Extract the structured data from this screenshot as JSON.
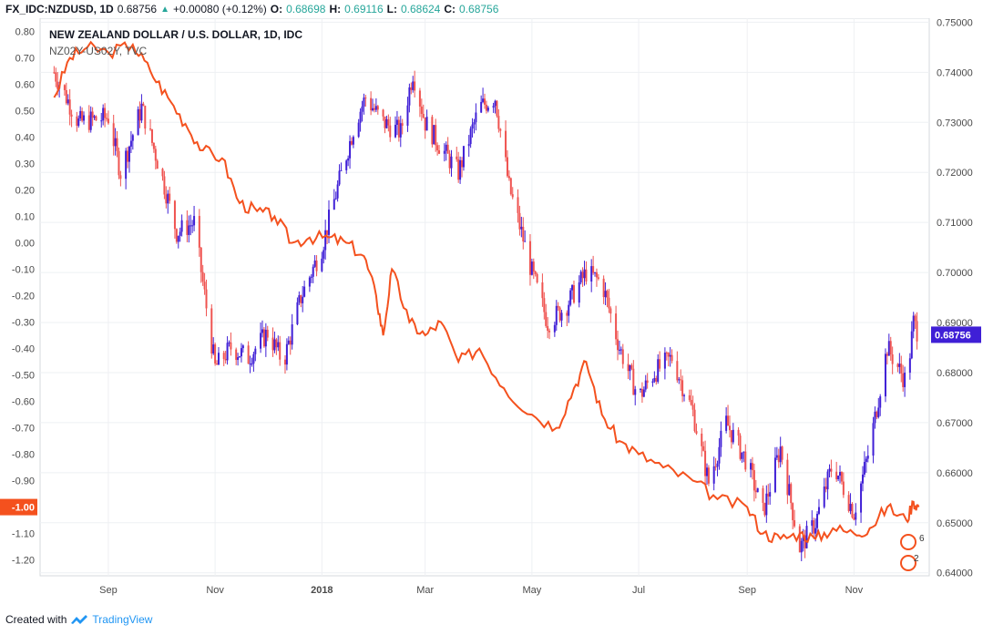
{
  "header": {
    "symbol": "FX_IDC:NZDUSD, 1D",
    "last": "0.68756",
    "change": "+0.00080 (+0.12%)",
    "o_label": "O:",
    "o_value": "0.68698",
    "h_label": "H:",
    "h_value": "0.69116",
    "l_label": "L:",
    "l_value": "0.68624",
    "c_label": "C:",
    "c_value": "0.68756"
  },
  "legend": {
    "main": "NEW ZEALAND DOLLAR / U.S. DOLLAR, 1D, IDC",
    "overlay": "NZ02Y-US02Y, TVC"
  },
  "footer": {
    "created_with": "Created with",
    "brand": "TradingView"
  },
  "colors": {
    "candle_up": "#3f1fd6",
    "candle_down": "#ef5350",
    "spread_line": "#f4511e",
    "grid": "#eef0f3",
    "axis_text": "#4a4a4a",
    "price_tag": "#3f1fd6",
    "spread_tag": "#f4511e"
  },
  "chart_data": {
    "type": "line",
    "title": "NEW ZEALAND DOLLAR / U.S. DOLLAR, 1D, IDC",
    "x_ticks": [
      "Sep",
      "Nov",
      "2018",
      "Mar",
      "May",
      "Jul",
      "Sep",
      "Nov"
    ],
    "right_axis": {
      "ticks": [
        "0.75000",
        "0.74000",
        "0.73000",
        "0.72000",
        "0.71000",
        "0.70000",
        "0.69000",
        "0.68000",
        "0.67000",
        "0.66000",
        "0.65000",
        "0.64000"
      ],
      "range": [
        0.6394,
        0.7508
      ],
      "last_label": "0.68756"
    },
    "left_axis": {
      "ticks": [
        "0.80",
        "0.70",
        "0.60",
        "0.50",
        "0.40",
        "0.30",
        "0.20",
        "0.10",
        "0.00",
        "-0.10",
        "-0.20",
        "-0.30",
        "-0.40",
        "-0.50",
        "-0.60",
        "-0.70",
        "-0.80",
        "-0.90",
        "-1.00",
        "-1.10",
        "-1.20"
      ],
      "range": [
        -1.26,
        0.85
      ],
      "last_label": "-1.00"
    },
    "series": [
      {
        "name": "NEW ZEALAND DOLLAR / U.S. DOLLAR",
        "axis": "right",
        "style": "candles",
        "x": [
          "2017-08-01",
          "2017-08-15",
          "2017-09-01",
          "2017-09-08",
          "2017-09-20",
          "2017-10-01",
          "2017-10-10",
          "2017-10-20",
          "2017-11-01",
          "2017-11-10",
          "2017-11-20",
          "2017-12-01",
          "2017-12-10",
          "2017-12-20",
          "2018-01-01",
          "2018-01-10",
          "2018-01-20",
          "2018-01-26",
          "2018-02-05",
          "2018-02-15",
          "2018-02-22",
          "2018-03-01",
          "2018-03-10",
          "2018-03-20",
          "2018-04-01",
          "2018-04-10",
          "2018-04-18",
          "2018-04-25",
          "2018-05-01",
          "2018-05-10",
          "2018-05-20",
          "2018-06-01",
          "2018-06-10",
          "2018-06-20",
          "2018-07-01",
          "2018-07-10",
          "2018-07-20",
          "2018-08-01",
          "2018-08-10",
          "2018-08-20",
          "2018-09-01",
          "2018-09-10",
          "2018-09-20",
          "2018-10-01",
          "2018-10-10",
          "2018-10-20",
          "2018-11-01",
          "2018-11-10",
          "2018-11-20",
          "2018-12-01",
          "2018-12-05",
          "2018-12-08"
        ],
        "y": [
          0.74,
          0.73,
          0.731,
          0.72,
          0.733,
          0.72,
          0.708,
          0.71,
          0.681,
          0.685,
          0.683,
          0.688,
          0.682,
          0.695,
          0.705,
          0.717,
          0.73,
          0.735,
          0.73,
          0.728,
          0.74,
          0.73,
          0.725,
          0.72,
          0.733,
          0.735,
          0.717,
          0.708,
          0.7,
          0.69,
          0.693,
          0.7,
          0.698,
          0.685,
          0.675,
          0.68,
          0.683,
          0.672,
          0.658,
          0.67,
          0.662,
          0.652,
          0.665,
          0.645,
          0.65,
          0.662,
          0.652,
          0.665,
          0.685,
          0.678,
          0.69,
          0.6876
        ]
      },
      {
        "name": "NZ02Y-US02Y",
        "axis": "left",
        "style": "line",
        "x": [
          "2017-08-01",
          "2017-08-10",
          "2017-08-20",
          "2017-09-01",
          "2017-09-15",
          "2017-09-25",
          "2017-10-05",
          "2017-10-15",
          "2017-10-25",
          "2017-11-05",
          "2017-11-15",
          "2017-11-25",
          "2017-12-05",
          "2017-12-15",
          "2017-12-25",
          "2018-01-05",
          "2018-01-15",
          "2018-01-25",
          "2018-02-01",
          "2018-02-05",
          "2018-02-10",
          "2018-02-20",
          "2018-03-01",
          "2018-03-10",
          "2018-03-20",
          "2018-04-01",
          "2018-04-15",
          "2018-05-01",
          "2018-05-15",
          "2018-05-25",
          "2018-06-01",
          "2018-06-10",
          "2018-06-20",
          "2018-07-01",
          "2018-07-15",
          "2018-08-01",
          "2018-08-15",
          "2018-09-01",
          "2018-09-10",
          "2018-09-20",
          "2018-10-01",
          "2018-10-10",
          "2018-10-20",
          "2018-11-01",
          "2018-11-10",
          "2018-11-20",
          "2018-12-01",
          "2018-12-05",
          "2018-12-08"
        ],
        "y": [
          0.55,
          0.7,
          0.74,
          0.72,
          0.75,
          0.65,
          0.55,
          0.45,
          0.35,
          0.32,
          0.15,
          0.12,
          0.1,
          0.0,
          0.02,
          0.02,
          0.0,
          -0.05,
          -0.2,
          -0.35,
          -0.1,
          -0.3,
          -0.35,
          -0.3,
          -0.45,
          -0.4,
          -0.55,
          -0.65,
          -0.7,
          -0.55,
          -0.45,
          -0.65,
          -0.75,
          -0.8,
          -0.85,
          -0.9,
          -0.97,
          -1.0,
          -1.1,
          -1.12,
          -1.1,
          -1.12,
          -1.08,
          -1.1,
          -1.08,
          -1.0,
          -1.05,
          -0.98,
          -1.0
        ]
      }
    ]
  }
}
